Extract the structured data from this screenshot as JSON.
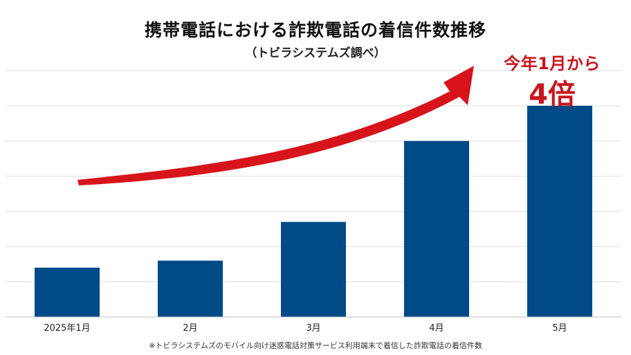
{
  "chart_data": {
    "type": "bar",
    "title": "携帯電話における詐欺電話の着信件数推移",
    "subtitle": "（トビラシステムズ調べ）",
    "categories": [
      "2025年1月",
      "2月",
      "3月",
      "4月",
      "5月"
    ],
    "values": [
      1.4,
      1.6,
      2.7,
      5.0,
      6.0
    ],
    "ylim": [
      0,
      7
    ],
    "grid": true,
    "bar_color": "#004a88",
    "annotation": {
      "line1": "今年1月から",
      "line2": "4倍",
      "color": "#c8161d"
    },
    "footnote": "※トビラシステムズのモバイル向け迷惑電話対策サービス利用端末で着信した詐欺電話の着信件数"
  }
}
